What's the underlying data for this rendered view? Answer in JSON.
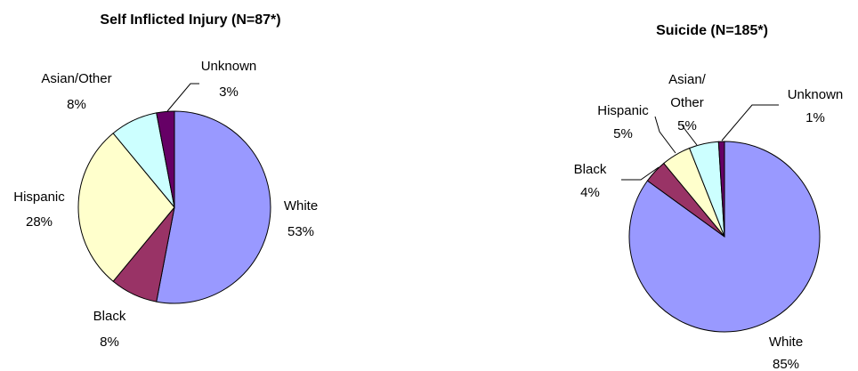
{
  "chart_data": [
    {
      "type": "pie",
      "title": "Self Inflicted Injury (N=87*)",
      "slices": [
        {
          "name": "White",
          "value_label": "53%",
          "value": 53,
          "color": "#9999FF"
        },
        {
          "name": "Black",
          "value_label": "8%",
          "value": 8,
          "color": "#993366"
        },
        {
          "name": "Hispanic",
          "value_label": "28%",
          "value": 28,
          "color": "#FFFFCC"
        },
        {
          "name": "Asian/Other",
          "value_label": "8%",
          "value": 8,
          "color": "#CCFFFF"
        },
        {
          "name": "Unknown",
          "value_label": "3%",
          "value": 3,
          "color": "#660066"
        }
      ]
    },
    {
      "type": "pie",
      "title": "Suicide (N=185*)",
      "slices": [
        {
          "name": "White",
          "value_label": "85%",
          "value": 85,
          "color": "#9999FF"
        },
        {
          "name": "Black",
          "value_label": "4%",
          "value": 4,
          "color": "#993366"
        },
        {
          "name": "Hispanic",
          "value_label": "5%",
          "value": 5,
          "color": "#FFFFCC"
        },
        {
          "name": "Asian/ Other",
          "value_label": "5%",
          "value": 5,
          "color": "#CCFFFF"
        },
        {
          "name": "Unknown",
          "value_label": "1%",
          "value": 1,
          "color": "#660066"
        }
      ]
    }
  ]
}
